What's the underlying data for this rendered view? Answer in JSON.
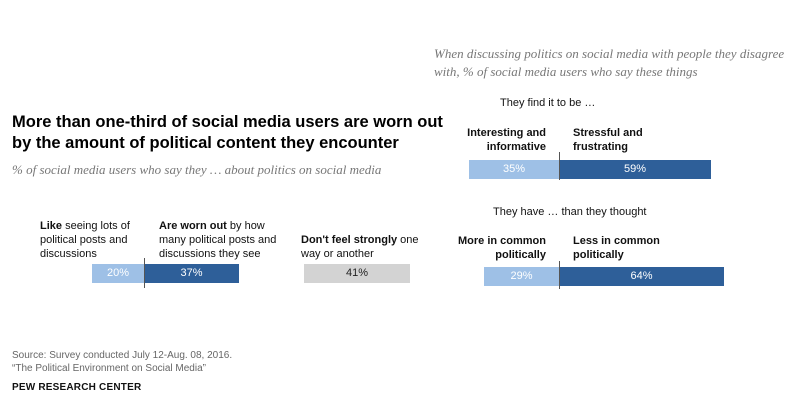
{
  "title": "More than one-third of social media users are worn out by the amount of political content they encounter",
  "subtitle": "% of social media users who say they … about politics on social media",
  "right_title": "When discussing politics on social media with people they disagree with, % of social media users who say these things",
  "chart_data": [
    {
      "type": "bar",
      "orientation": "horizontal-stacked",
      "title": "% of social media users who say they … about politics on social media",
      "categories": [
        "Like seeing lots of political posts and discussions",
        "Are worn out by how many political posts and discussions they see",
        "Don't feel strongly one way or another"
      ],
      "values": [
        20,
        37,
        41
      ],
      "value_labels": [
        "20%",
        "37%",
        "41%"
      ],
      "category_parts": [
        {
          "bold": "Like",
          "rest": " seeing lots of political posts and discussions"
        },
        {
          "bold": "Are worn out",
          "rest": " by how many political posts and discussions they see"
        },
        {
          "bold": "Don't feel strongly",
          "rest": " one way or another"
        }
      ],
      "colors": [
        "#9ec0e6",
        "#2e5f99",
        "#d3d3d3"
      ]
    },
    {
      "type": "bar",
      "orientation": "horizontal-stacked",
      "title": "They find it to be …",
      "categories": [
        "Interesting and informative",
        "Stressful and frustrating"
      ],
      "values": [
        35,
        59
      ],
      "value_labels": [
        "35%",
        "59%"
      ],
      "colors": [
        "#9ec0e6",
        "#2e5f99"
      ]
    },
    {
      "type": "bar",
      "orientation": "horizontal-stacked",
      "title": "They have … than they thought",
      "categories": [
        "More in common politically",
        "Less in common politically"
      ],
      "values": [
        29,
        64
      ],
      "value_labels": [
        "29%",
        "64%"
      ],
      "colors": [
        "#9ec0e6",
        "#2e5f99"
      ]
    }
  ],
  "footer": {
    "source": "Source: Survey conducted July 12-Aug. 08, 2016.",
    "report": "“The Political Environment on Social Media”",
    "brand": "PEW RESEARCH CENTER"
  }
}
